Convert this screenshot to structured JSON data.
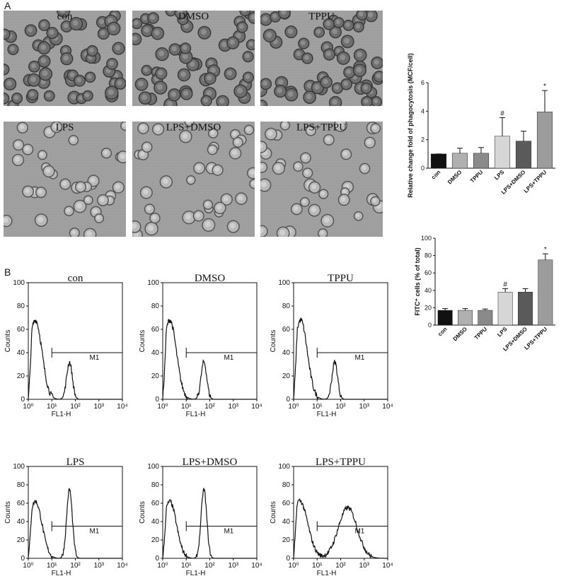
{
  "panels": {
    "A": {
      "label": "A",
      "micrographs": [
        "con",
        "DMSO",
        "TPPU",
        "LPS",
        "LPS+DMSO",
        "LPS+TPPU"
      ]
    },
    "B": {
      "label": "B",
      "histograms": {
        "titles": [
          "con",
          "DMSO",
          "TPPU",
          "LPS",
          "LPS+DMSO",
          "LPS+TPPU"
        ],
        "ylabel": "Counts",
        "xlabel": "FL1-H",
        "gate": "M1",
        "yticks": [
          0,
          20,
          40,
          60,
          80,
          100
        ],
        "xticks": [
          {
            "value": 0,
            "label": "10⁰"
          },
          {
            "value": 1,
            "label": "10¹"
          },
          {
            "value": 2,
            "label": "10²"
          },
          {
            "value": 3,
            "label": "10³"
          },
          {
            "value": 4,
            "label": "10⁴"
          }
        ]
      }
    }
  },
  "chart_data": [
    {
      "type": "bar",
      "ylabel": "Relative change fold of phagocytosis (MCF/cell)",
      "categories": [
        "con",
        "DMSO",
        "TPPU",
        "LPS",
        "LPS+DMSO",
        "LPS+TPPU"
      ],
      "values": [
        1,
        1.05,
        1.05,
        2.25,
        1.9,
        3.95
      ],
      "errors": [
        0,
        0.35,
        0.4,
        1.3,
        0.7,
        1.5
      ],
      "colors": [
        "#111111",
        "#b0b0b0",
        "#8a8a8a",
        "#d6d6d6",
        "#5a5a5a",
        "#9c9c9c"
      ],
      "ylim": [
        0,
        6
      ],
      "yticks": [
        0,
        2,
        4,
        6
      ],
      "annotations": [
        {
          "category": "LPS",
          "text": "#"
        },
        {
          "category": "LPS+TPPU",
          "text": "*"
        }
      ]
    },
    {
      "type": "bar",
      "ylabel": "FITC⁺ cells (% of total)",
      "categories": [
        "con",
        "DMSO",
        "TPPU",
        "LPS",
        "LPS+DMSO",
        "LPS+TPPU"
      ],
      "values": [
        17,
        17,
        17,
        38,
        38,
        75
      ],
      "errors": [
        2,
        2,
        1.5,
        4,
        4,
        7
      ],
      "colors": [
        "#111111",
        "#b0b0b0",
        "#8a8a8a",
        "#d6d6d6",
        "#5a5a5a",
        "#9c9c9c"
      ],
      "ylim": [
        0,
        100
      ],
      "yticks": [
        0,
        20,
        40,
        60,
        80,
        100
      ],
      "annotations": [
        {
          "category": "LPS",
          "text": "#"
        },
        {
          "category": "LPS+TPPU",
          "text": "*"
        }
      ]
    }
  ]
}
